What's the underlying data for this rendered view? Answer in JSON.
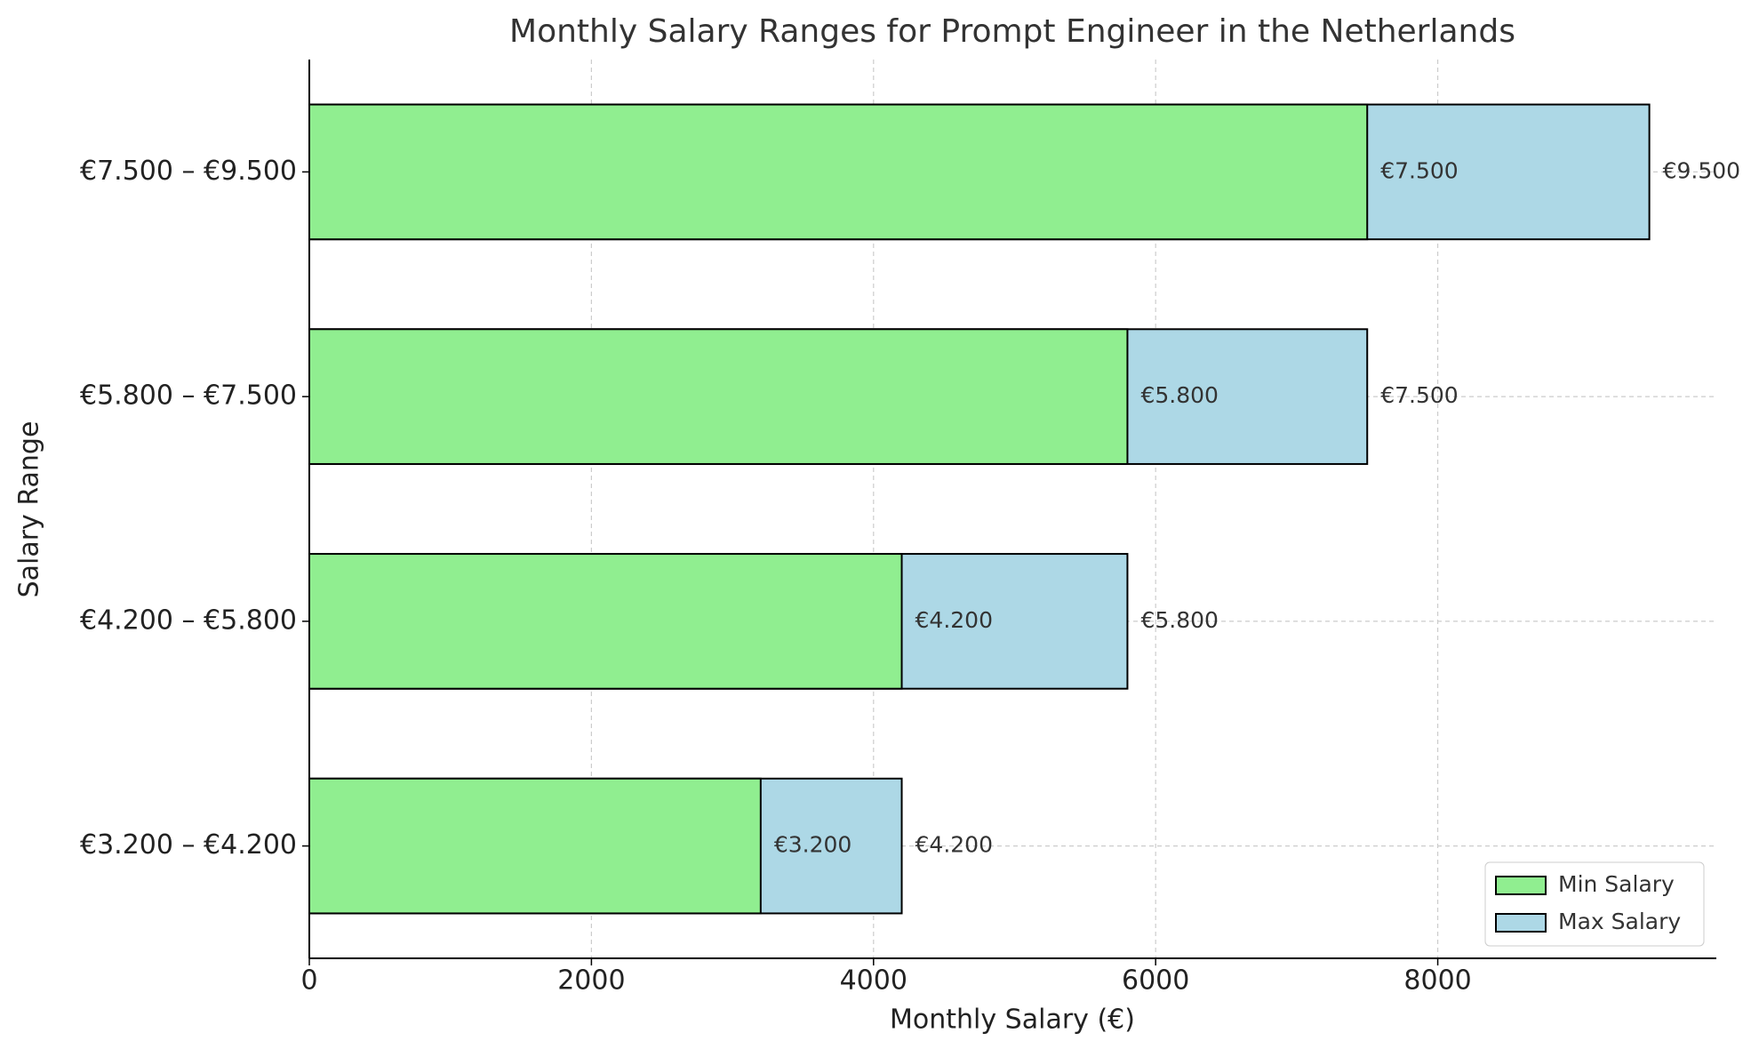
{
  "chart_data": {
    "type": "barh",
    "title": "Monthly Salary Ranges for Prompt Engineer in the Netherlands",
    "xlabel": "Monthly Salary (€)",
    "ylabel": "Salary Range",
    "categories": [
      "€3.200 – €4.200",
      "€4.200 – €5.800",
      "€5.800 – €7.500",
      "€7.500 – €9.500"
    ],
    "series": [
      {
        "name": "Min Salary",
        "color": "#90ee90",
        "values": [
          3200,
          4200,
          5800,
          7500
        ],
        "value_labels": [
          "€3.200",
          "€4.200",
          "€5.800",
          "€7.500"
        ]
      },
      {
        "name": "Max Salary",
        "color": "#add8e6",
        "values": [
          4200,
          5800,
          7500,
          9500
        ],
        "value_labels": [
          "€4.200",
          "€5.800",
          "€7.500",
          "€9.500"
        ]
      }
    ],
    "xlim": [
      0,
      9975
    ],
    "xticks": [
      0,
      2000,
      4000,
      6000,
      8000
    ],
    "grid": true,
    "legend": "lower right"
  }
}
